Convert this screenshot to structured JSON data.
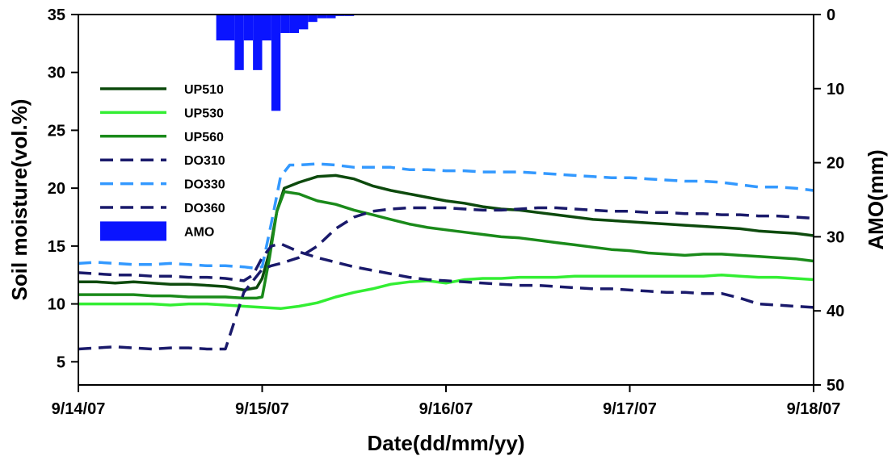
{
  "chart_data": {
    "type": "line",
    "title": "",
    "xlabel": "Date(dd/mm/yy)",
    "ylabel": "Soil moisture(vol.%)",
    "y2label": "AMO(mm)",
    "x_ticks": [
      "9/14/07",
      "9/15/07",
      "9/16/07",
      "9/17/07",
      "9/18/07"
    ],
    "x_range_days": [
      0,
      4
    ],
    "ylim": [
      3,
      35
    ],
    "y_ticks": [
      "5",
      "10",
      "15",
      "20",
      "25",
      "30",
      "35"
    ],
    "y2lim": [
      0,
      50
    ],
    "y2_inverted": true,
    "y2_ticks": [
      "0",
      "10",
      "20",
      "30",
      "40",
      "50"
    ],
    "legend_position": "upper-left",
    "series": [
      {
        "name": "UP510",
        "color": "#0d4a0d",
        "dash": "solid",
        "x": [
          0,
          0.1,
          0.2,
          0.3,
          0.4,
          0.5,
          0.6,
          0.7,
          0.8,
          0.9,
          0.97,
          1.0,
          1.04,
          1.08,
          1.12,
          1.2,
          1.3,
          1.4,
          1.5,
          1.6,
          1.7,
          1.8,
          1.9,
          2.0,
          2.1,
          2.2,
          2.3,
          2.4,
          2.5,
          2.6,
          2.7,
          2.8,
          2.9,
          3.0,
          3.1,
          3.2,
          3.3,
          3.4,
          3.5,
          3.6,
          3.7,
          3.8,
          3.9,
          4.0
        ],
        "y": [
          11.9,
          11.9,
          11.8,
          11.9,
          11.8,
          11.7,
          11.7,
          11.6,
          11.5,
          11.2,
          11.4,
          12.2,
          14.5,
          18.0,
          20.0,
          20.5,
          21.0,
          21.1,
          20.8,
          20.2,
          19.8,
          19.5,
          19.2,
          18.9,
          18.7,
          18.4,
          18.2,
          18.1,
          17.9,
          17.7,
          17.5,
          17.3,
          17.2,
          17.1,
          17.0,
          16.9,
          16.8,
          16.7,
          16.6,
          16.5,
          16.3,
          16.2,
          16.1,
          15.9
        ]
      },
      {
        "name": "UP530",
        "color": "#33ee33",
        "dash": "solid",
        "x": [
          0,
          0.1,
          0.2,
          0.3,
          0.4,
          0.5,
          0.6,
          0.7,
          0.8,
          0.9,
          1.0,
          1.1,
          1.2,
          1.3,
          1.4,
          1.5,
          1.6,
          1.7,
          1.8,
          1.9,
          2.0,
          2.1,
          2.2,
          2.3,
          2.4,
          2.5,
          2.6,
          2.7,
          2.8,
          2.9,
          3.0,
          3.1,
          3.2,
          3.3,
          3.4,
          3.5,
          3.6,
          3.7,
          3.8,
          3.9,
          4.0
        ],
        "y": [
          10.0,
          10.0,
          10.0,
          10.0,
          10.0,
          9.9,
          10.0,
          10.0,
          9.9,
          9.8,
          9.7,
          9.6,
          9.8,
          10.1,
          10.6,
          11.0,
          11.3,
          11.7,
          11.9,
          12.0,
          11.8,
          12.1,
          12.2,
          12.2,
          12.3,
          12.3,
          12.3,
          12.4,
          12.4,
          12.4,
          12.4,
          12.4,
          12.4,
          12.4,
          12.4,
          12.5,
          12.4,
          12.3,
          12.3,
          12.2,
          12.1
        ]
      },
      {
        "name": "UP560",
        "color": "#1a8a1a",
        "dash": "solid",
        "x": [
          0,
          0.1,
          0.2,
          0.3,
          0.4,
          0.5,
          0.6,
          0.7,
          0.8,
          0.9,
          0.97,
          1.0,
          1.04,
          1.08,
          1.12,
          1.2,
          1.3,
          1.4,
          1.5,
          1.6,
          1.7,
          1.8,
          1.9,
          2.0,
          2.1,
          2.2,
          2.3,
          2.4,
          2.5,
          2.6,
          2.7,
          2.8,
          2.9,
          3.0,
          3.1,
          3.2,
          3.3,
          3.4,
          3.5,
          3.6,
          3.7,
          3.8,
          3.9,
          4.0
        ],
        "y": [
          10.8,
          10.8,
          10.8,
          10.8,
          10.7,
          10.7,
          10.6,
          10.6,
          10.6,
          10.5,
          10.5,
          10.6,
          14.0,
          18.0,
          19.7,
          19.5,
          18.9,
          18.6,
          18.1,
          17.7,
          17.3,
          16.9,
          16.6,
          16.4,
          16.2,
          16.0,
          15.8,
          15.7,
          15.5,
          15.3,
          15.1,
          14.9,
          14.7,
          14.6,
          14.4,
          14.3,
          14.2,
          14.3,
          14.3,
          14.2,
          14.1,
          14.0,
          13.9,
          13.7
        ]
      },
      {
        "name": "DO310",
        "color": "#1a1a6b",
        "dash": "dashed",
        "x": [
          0,
          0.1,
          0.2,
          0.3,
          0.4,
          0.5,
          0.6,
          0.7,
          0.8,
          0.9,
          0.95,
          1.0,
          1.05,
          1.1,
          1.2,
          1.3,
          1.4,
          1.5,
          1.6,
          1.7,
          1.8,
          1.9,
          2.0,
          2.1,
          2.2,
          2.3,
          2.4,
          2.5,
          2.6,
          2.7,
          2.8,
          2.9,
          3.0,
          3.1,
          3.2,
          3.3,
          3.4,
          3.5,
          3.6,
          3.7,
          3.8,
          3.9,
          4.0
        ],
        "y": [
          12.7,
          12.6,
          12.5,
          12.5,
          12.4,
          12.4,
          12.3,
          12.3,
          12.2,
          12.0,
          12.5,
          14.0,
          15.0,
          15.2,
          14.5,
          14.0,
          13.6,
          13.2,
          12.9,
          12.6,
          12.3,
          12.1,
          12.0,
          11.9,
          11.8,
          11.7,
          11.6,
          11.6,
          11.5,
          11.4,
          11.3,
          11.3,
          11.2,
          11.1,
          11.0,
          11.0,
          10.9,
          10.9,
          10.5,
          10.0,
          9.9,
          9.8,
          9.7
        ]
      },
      {
        "name": "DO330",
        "color": "#3399ff",
        "dash": "dashed",
        "x": [
          0,
          0.1,
          0.2,
          0.3,
          0.4,
          0.5,
          0.6,
          0.7,
          0.8,
          0.9,
          0.95,
          1.0,
          1.05,
          1.1,
          1.15,
          1.2,
          1.3,
          1.4,
          1.5,
          1.6,
          1.7,
          1.8,
          1.9,
          2.0,
          2.1,
          2.2,
          2.3,
          2.4,
          2.5,
          2.6,
          2.7,
          2.8,
          2.9,
          3.0,
          3.1,
          3.2,
          3.3,
          3.4,
          3.5,
          3.6,
          3.7,
          3.8,
          3.9,
          4.0
        ],
        "y": [
          13.5,
          13.6,
          13.5,
          13.4,
          13.4,
          13.5,
          13.4,
          13.3,
          13.3,
          13.2,
          13.1,
          13.2,
          17.0,
          21.0,
          22.0,
          22.0,
          22.1,
          22.0,
          21.8,
          21.8,
          21.8,
          21.6,
          21.6,
          21.5,
          21.5,
          21.4,
          21.4,
          21.4,
          21.3,
          21.2,
          21.1,
          21.0,
          20.9,
          20.9,
          20.8,
          20.7,
          20.6,
          20.6,
          20.5,
          20.3,
          20.1,
          20.1,
          20.0,
          19.8
        ]
      },
      {
        "name": "DO360",
        "color": "#1a1a6b",
        "dash": "dashed",
        "x": [
          0,
          0.1,
          0.2,
          0.3,
          0.4,
          0.5,
          0.6,
          0.7,
          0.8,
          0.9,
          1.0,
          1.05,
          1.1,
          1.2,
          1.3,
          1.4,
          1.5,
          1.6,
          1.7,
          1.8,
          1.9,
          2.0,
          2.1,
          2.2,
          2.3,
          2.4,
          2.5,
          2.6,
          2.7,
          2.8,
          2.9,
          3.0,
          3.1,
          3.2,
          3.3,
          3.4,
          3.5,
          3.6,
          3.7,
          3.8,
          3.9,
          4.0
        ],
        "y": [
          6.1,
          6.2,
          6.3,
          6.2,
          6.1,
          6.2,
          6.2,
          6.1,
          6.1,
          11.0,
          13.0,
          13.3,
          13.5,
          14.0,
          15.0,
          16.5,
          17.5,
          18.0,
          18.2,
          18.3,
          18.3,
          18.3,
          18.2,
          18.1,
          18.1,
          18.2,
          18.3,
          18.3,
          18.2,
          18.1,
          18.0,
          18.0,
          17.9,
          17.9,
          17.8,
          17.8,
          17.7,
          17.7,
          17.6,
          17.6,
          17.5,
          17.4
        ]
      }
    ],
    "bars": {
      "name": "AMO",
      "color": "#0a14ff",
      "axis": "right",
      "x": [
        0.775,
        0.825,
        0.875,
        0.925,
        0.975,
        1.025,
        1.075,
        1.125,
        1.175,
        1.225,
        1.275,
        1.325,
        1.375,
        1.425,
        1.475
      ],
      "y": [
        3.5,
        3.5,
        7.5,
        3.5,
        7.5,
        3.5,
        13.0,
        2.5,
        2.5,
        2.0,
        1.0,
        0.5,
        0.5,
        0.2,
        0.2
      ]
    }
  }
}
